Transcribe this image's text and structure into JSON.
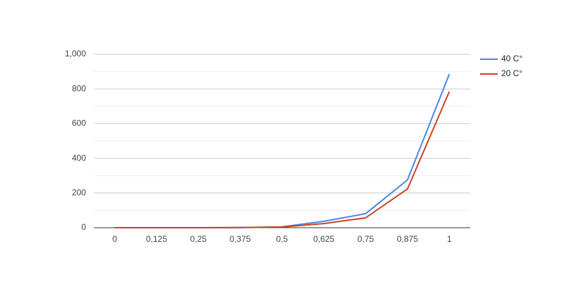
{
  "chart_data": {
    "type": "line",
    "categories": [
      "0",
      "0,125",
      "0,25",
      "0,375",
      "0,5",
      "0,625",
      "0,75",
      "0,875",
      "1"
    ],
    "series": [
      {
        "name": "40 C°",
        "color": "#4a86e8",
        "values": [
          0,
          0,
          0,
          1,
          5,
          37,
          81,
          276,
          886
        ]
      },
      {
        "name": "20 C°",
        "color": "#cc4125",
        "values": [
          0,
          0,
          0,
          1,
          4,
          24,
          57,
          224,
          785
        ]
      }
    ],
    "ylim": [
      0,
      1000
    ],
    "yticks": [
      0,
      200,
      400,
      600,
      800,
      {
        "value": 1000,
        "label": "1,000"
      }
    ],
    "yminor": [
      100,
      300,
      500,
      700,
      900
    ],
    "grid": true,
    "legend": "right"
  }
}
